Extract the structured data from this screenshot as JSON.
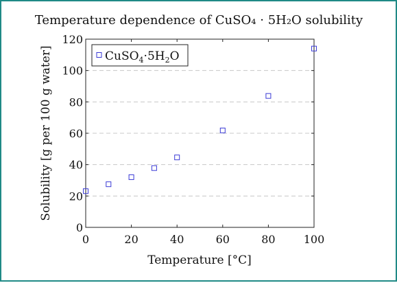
{
  "chart_data": {
    "type": "scatter",
    "title": "Temperature dependence of CuSO₄ · 5H₂O solubility",
    "xlabel": "Temperature [°C]",
    "ylabel": "Solubility [g per 100 g water]",
    "xlim": [
      0,
      100
    ],
    "ylim": [
      0,
      120
    ],
    "xticks": [
      0,
      20,
      40,
      60,
      80,
      100
    ],
    "yticks": [
      0,
      20,
      40,
      60,
      80,
      100,
      120
    ],
    "grid": "horizontal dashed",
    "legend_position": "top-left",
    "series": [
      {
        "name": "CuSO₄·5H₂O",
        "marker": "square",
        "color": "#3a3ad6",
        "x": [
          0,
          10,
          20,
          30,
          40,
          60,
          80,
          100
        ],
        "y": [
          23.1,
          27.5,
          32.0,
          37.8,
          44.6,
          61.8,
          83.8,
          114.0
        ]
      }
    ]
  }
}
